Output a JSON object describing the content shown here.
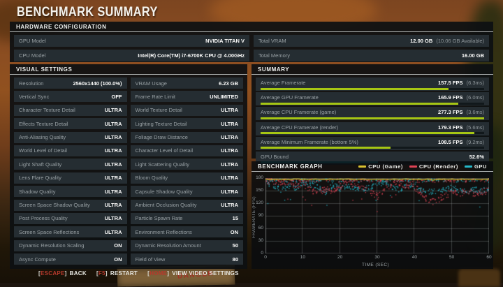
{
  "page_title": "BENCHMARK SUMMARY",
  "background_scene": {
    "crate_text": "DANGER"
  },
  "hardware": {
    "header": "HARDWARE CONFIGURATION",
    "left_rows": [
      {
        "label": "GPU Model",
        "value": "NVIDIA TITAN V"
      },
      {
        "label": "CPU Model",
        "value": "Intel(R) Core(TM) i7-6700K CPU @ 4.00GHz"
      }
    ],
    "right_rows": [
      {
        "label": "Total VRAM",
        "value": "12.00 GB",
        "note": "(10.06 GB Available)"
      },
      {
        "label": "Total Memory",
        "value": "16.00 GB"
      }
    ]
  },
  "visual_settings": {
    "header": "VISUAL SETTINGS",
    "left_column": [
      {
        "label": "Resolution",
        "value": "2560x1440 (100.0%)"
      },
      {
        "label": "Vertical Sync",
        "value": "OFF"
      },
      {
        "label": "Character Texture Detail",
        "value": "ULTRA"
      },
      {
        "label": "Effects Texture Detail",
        "value": "ULTRA"
      },
      {
        "label": "Anti-Aliasing Quality",
        "value": "ULTRA"
      },
      {
        "label": "World Level of Detail",
        "value": "ULTRA"
      },
      {
        "label": "Light Shaft Quality",
        "value": "ULTRA"
      },
      {
        "label": "Lens Flare Quality",
        "value": "ULTRA"
      },
      {
        "label": "Shadow Quality",
        "value": "ULTRA"
      },
      {
        "label": "Screen Space Shadow Quality",
        "value": "ULTRA"
      },
      {
        "label": "Post Process Quality",
        "value": "ULTRA"
      },
      {
        "label": "Screen Space Reflections",
        "value": "ULTRA"
      },
      {
        "label": "Dynamic Resolution Scaling",
        "value": "ON"
      },
      {
        "label": "Async Compute",
        "value": "ON"
      }
    ],
    "right_column": [
      {
        "label": "VRAM Usage",
        "value": "6.23 GB"
      },
      {
        "label": "Frame Rate Limit",
        "value": "UNLIMITED"
      },
      {
        "label": "World Texture Detail",
        "value": "ULTRA"
      },
      {
        "label": "Lighting Texture Detail",
        "value": "ULTRA"
      },
      {
        "label": "Foliage Draw Distance",
        "value": "ULTRA"
      },
      {
        "label": "Character Level of Detail",
        "value": "ULTRA"
      },
      {
        "label": "Light Scattering Quality",
        "value": "ULTRA"
      },
      {
        "label": "Bloom Quality",
        "value": "ULTRA"
      },
      {
        "label": "Capsule Shadow Quality",
        "value": "ULTRA"
      },
      {
        "label": "Ambient Occlusion Quality",
        "value": "ULTRA"
      },
      {
        "label": "Particle Spawn Rate",
        "value": "15"
      },
      {
        "label": "Environment Reflections",
        "value": "ON"
      },
      {
        "label": "Dynamic Resolution Amount",
        "value": "50"
      },
      {
        "label": "Field of View",
        "value": "80"
      }
    ]
  },
  "summary": {
    "header": "SUMMARY",
    "rows": [
      {
        "label": "Average Framerate",
        "value": "157.5 FPS",
        "note": "(6.3ms)",
        "bar_pct": 84,
        "bar_color": "#a6c614"
      },
      {
        "label": "Average GPU Framerate",
        "value": "165.9 FPS",
        "note": "(6.0ms)",
        "bar_pct": 88.5,
        "bar_color": "#a6c614"
      },
      {
        "label": "Average CPU Framerate (game)",
        "value": "277.3 FPS",
        "note": "(3.6ms)",
        "bar_pct": 100,
        "bar_color": "#a6c614"
      },
      {
        "label": "Average CPU Framerate (render)",
        "value": "179.3 FPS",
        "note": "(5.6ms)",
        "bar_pct": 95.5,
        "bar_color": "#a6c614"
      },
      {
        "label": "Average Minimum Framerate (bottom 5%)",
        "value": "108.5 FPS",
        "note": "(9.2ms)",
        "bar_pct": 58,
        "bar_color": "#a6c614"
      },
      {
        "label": "GPU Bound",
        "value": "52.6%",
        "note": "",
        "bar_pct": 52.6,
        "bar_color": "#1db6c8"
      }
    ]
  },
  "chart_data": {
    "type": "scatter",
    "title": "BENCHMARK GRAPH",
    "xlabel": "TIME (SEC)",
    "ylabel": "FRAMERATE (FPS)",
    "xlim": [
      0,
      60
    ],
    "ylim": [
      0,
      180
    ],
    "xticks": [
      0,
      10,
      20,
      30,
      40,
      50,
      60
    ],
    "yticks": [
      180,
      150,
      120,
      90,
      60,
      30,
      0
    ],
    "grid": true,
    "legend_position": "top-right",
    "legend": [
      {
        "label": "CPU (Game)",
        "color": "#d9c230"
      },
      {
        "label": "CPU (Render)",
        "color": "#dd4355"
      },
      {
        "label": "GPU",
        "color": "#25b7c9"
      }
    ],
    "series": [
      {
        "name": "CPU (Game)",
        "color": "#d9c230",
        "type": "line",
        "note": "avg 277.3 FPS - clipped at axis max, renders as line along 180",
        "x": [
          0,
          60
        ],
        "values": [
          180,
          180
        ]
      },
      {
        "name": "CPU (Render)",
        "color": "#dd4355",
        "type": "scatter",
        "spread": 16,
        "x": [
          0,
          2,
          4,
          6,
          8,
          10,
          12,
          14,
          16,
          18,
          20,
          22,
          24,
          26,
          28,
          30,
          32,
          34,
          36,
          38,
          40,
          42,
          44,
          46,
          48,
          50,
          52,
          54,
          56,
          58,
          60
        ],
        "mean": [
          175,
          172,
          168,
          172,
          165,
          168,
          152,
          146,
          155,
          150,
          162,
          170,
          166,
          155,
          145,
          138,
          158,
          168,
          170,
          162,
          158,
          145,
          122,
          128,
          140,
          148,
          145,
          150,
          142,
          148,
          152
        ]
      },
      {
        "name": "GPU",
        "color": "#25b7c9",
        "type": "scatter",
        "spread": 13,
        "x": [
          0,
          2,
          4,
          6,
          8,
          10,
          12,
          14,
          16,
          18,
          20,
          22,
          24,
          26,
          28,
          30,
          32,
          34,
          36,
          38,
          40,
          42,
          44,
          46,
          48,
          50,
          52,
          54,
          56,
          58,
          60
        ],
        "mean": [
          168,
          165,
          152,
          162,
          158,
          170,
          166,
          158,
          148,
          165,
          155,
          162,
          158,
          152,
          160,
          165,
          168,
          160,
          152,
          168,
          162,
          150,
          148,
          150,
          155,
          158,
          152,
          148,
          154,
          150,
          155
        ]
      }
    ]
  },
  "footer": {
    "hints": [
      {
        "key": "ESCAPE",
        "label": "BACK"
      },
      {
        "key": "F5",
        "label": "RESTART"
      },
      {
        "key": "HOME",
        "label": "VIEW VIDEO SETTINGS"
      }
    ]
  },
  "colors": {
    "accent_green": "#a6c614",
    "accent_cyan": "#1db6c8",
    "key_red": "#b5392c",
    "legend_yellow": "#d9c230",
    "legend_red": "#dd4355",
    "legend_cyan": "#25b7c9"
  }
}
